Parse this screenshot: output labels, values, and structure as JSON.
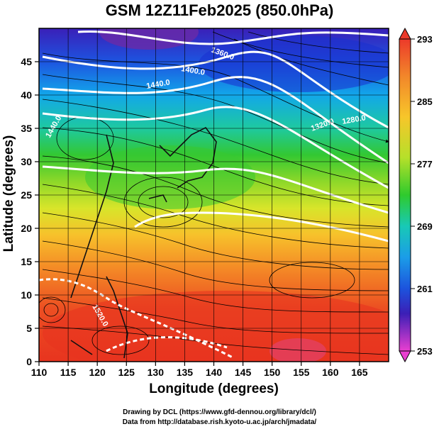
{
  "title": "GSM 12Z11Feb2025 (850.0hPa)",
  "x_axis_label": "Longitude (degrees)",
  "y_axis_label": "Latitude  (degrees)",
  "credits": {
    "line1": "Drawing by DCL (https://www.gfd-dennou.org/library/dcl/)",
    "line2": "Data from http://database.rish.kyoto-u.ac.jp/arch/jmadata/"
  },
  "chart_data": {
    "type": "heatmap",
    "x_ticks": [
      "110",
      "115",
      "120",
      "125",
      "130",
      "135",
      "140",
      "145",
      "150",
      "155",
      "160",
      "165"
    ],
    "y_ticks": [
      "0",
      "5",
      "10",
      "15",
      "20",
      "25",
      "30",
      "35",
      "40",
      "45"
    ],
    "xlim": [
      110,
      170
    ],
    "ylim": [
      0,
      50
    ],
    "colorbar": {
      "ticks": [
        "293",
        "285",
        "277",
        "269",
        "261",
        "253"
      ],
      "range": [
        253,
        293
      ]
    },
    "contour_labels": [
      "1360.0",
      "1400.0",
      "1440.0",
      "1520.0",
      "1320.0",
      "1280.0",
      "1440.0"
    ],
    "grid": true
  }
}
